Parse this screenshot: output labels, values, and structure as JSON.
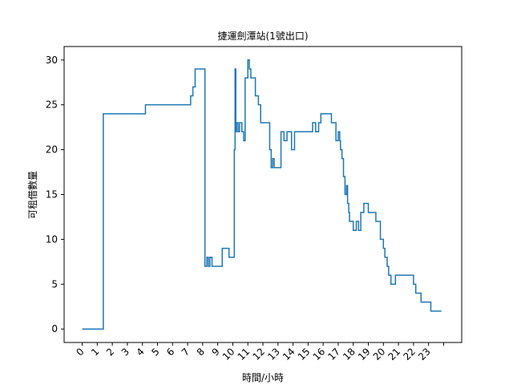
{
  "chart_data": {
    "type": "line",
    "title": "捷運劍潭站(1號出口)",
    "xlabel": "時間/小時",
    "ylabel": "可租借數量",
    "xlim": [
      -1.2,
      25.2
    ],
    "ylim": [
      -1.5,
      31.5
    ],
    "x_ticks": [
      0,
      1,
      2,
      3,
      4,
      5,
      6,
      7,
      8,
      9,
      10,
      11,
      12,
      13,
      14,
      15,
      16,
      17,
      18,
      19,
      20,
      21,
      22,
      23,
      24
    ],
    "x_tick_labels": [
      "0",
      "1",
      "2",
      "3",
      "4",
      "5",
      "6",
      "7",
      "8",
      "9",
      "10",
      "11",
      "12",
      "13",
      "14",
      "15",
      "16",
      "17",
      "18",
      "19",
      "20",
      "21",
      "22",
      "23",
      ""
    ],
    "y_ticks": [
      0,
      5,
      10,
      15,
      20,
      25,
      30
    ],
    "grid": false,
    "line_color": "#1f77b4",
    "step": "post",
    "series": [
      {
        "x": [
          0,
          1.4,
          4.2,
          7.2,
          7.35,
          7.5,
          8.15,
          8.28,
          8.38,
          8.48,
          8.62,
          9.3,
          9.75,
          10.1,
          10.15,
          10.2,
          10.25,
          10.35,
          10.45,
          10.6,
          10.72,
          10.82,
          11.0,
          11.1,
          11.2,
          11.5,
          11.7,
          11.85,
          12.0,
          12.45,
          12.55,
          12.65,
          12.75,
          13.2,
          13.3,
          13.4,
          13.5,
          13.6,
          13.9,
          14.1,
          14.2,
          14.5,
          14.65,
          15.3,
          15.5,
          15.7,
          15.85,
          16.4,
          16.55,
          16.7,
          16.85,
          17.0,
          17.1,
          17.15,
          17.25,
          17.35,
          17.45,
          17.55,
          17.62,
          17.7,
          17.75,
          17.85,
          18.0,
          18.2,
          18.35,
          18.5,
          18.7,
          19.0,
          19.5,
          19.8,
          20.0,
          20.1,
          20.25,
          20.35,
          20.5,
          20.7,
          20.8,
          21.0,
          21.9,
          22.0,
          22.15,
          22.5,
          23.15,
          23.85
        ],
        "y": [
          0,
          24,
          25,
          26,
          27,
          29,
          7,
          8,
          7,
          8,
          7,
          9,
          8,
          20,
          29,
          22,
          23,
          22,
          23,
          22,
          21,
          28,
          30,
          29,
          28,
          26,
          25,
          23,
          23,
          20,
          18,
          19,
          18,
          22,
          22,
          21,
          21,
          22,
          20,
          22,
          22,
          22,
          22,
          23,
          22,
          23,
          24,
          24,
          23,
          23,
          21,
          22,
          21,
          20,
          19,
          17,
          15,
          16,
          14,
          13,
          12,
          12,
          11,
          12,
          11,
          13,
          14,
          13,
          12,
          10,
          9,
          8,
          7,
          6,
          5,
          5,
          6,
          6,
          6,
          5,
          4,
          3,
          2,
          2
        ]
      }
    ]
  }
}
